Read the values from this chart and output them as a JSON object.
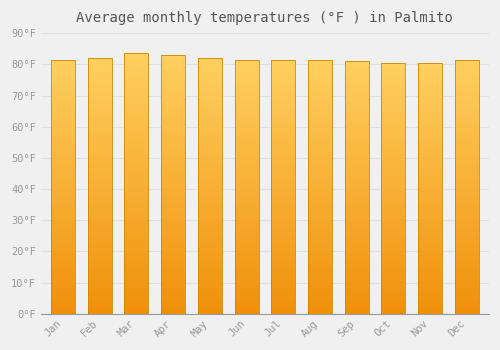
{
  "title": "Average monthly temperatures (°F ) in Palmito",
  "months": [
    "Jan",
    "Feb",
    "Mar",
    "Apr",
    "May",
    "Jun",
    "Jul",
    "Aug",
    "Sep",
    "Oct",
    "Nov",
    "Dec"
  ],
  "values": [
    81.5,
    82.0,
    83.5,
    83.0,
    82.0,
    81.5,
    81.5,
    81.5,
    81.0,
    80.5,
    80.5,
    81.5
  ],
  "bar_color_top": "#FFD060",
  "bar_color_bottom": "#F0900A",
  "bar_edge_color": "#CC8800",
  "background_color": "#F0F0F0",
  "grid_color": "#E0E0E0",
  "text_color": "#999999",
  "title_color": "#555555",
  "ylim": [
    0,
    90
  ],
  "yticks": [
    0,
    10,
    20,
    30,
    40,
    50,
    60,
    70,
    80,
    90
  ],
  "ytick_labels": [
    "0°F",
    "10°F",
    "20°F",
    "30°F",
    "40°F",
    "50°F",
    "60°F",
    "70°F",
    "80°F",
    "90°F"
  ],
  "figsize": [
    5.0,
    3.5
  ],
  "dpi": 100,
  "bar_width": 0.65
}
